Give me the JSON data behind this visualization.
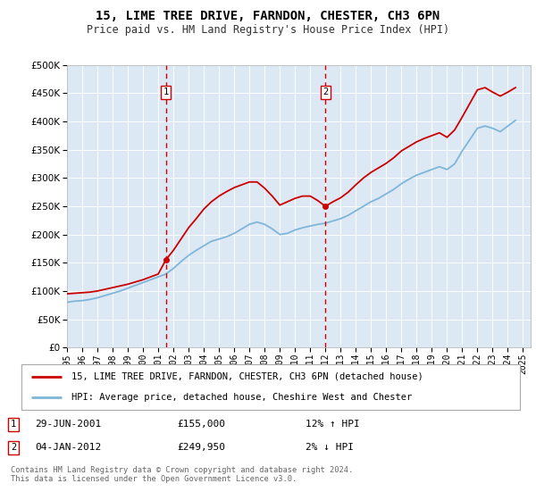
{
  "title": "15, LIME TREE DRIVE, FARNDON, CHESTER, CH3 6PN",
  "subtitle": "Price paid vs. HM Land Registry's House Price Index (HPI)",
  "legend_line1": "15, LIME TREE DRIVE, FARNDON, CHESTER, CH3 6PN (detached house)",
  "legend_line2": "HPI: Average price, detached house, Cheshire West and Chester",
  "sale1_date": "29-JUN-2001",
  "sale1_price": "£155,000",
  "sale1_hpi": "12% ↑ HPI",
  "sale2_date": "04-JAN-2012",
  "sale2_price": "£249,950",
  "sale2_hpi": "2% ↓ HPI",
  "footer": "Contains HM Land Registry data © Crown copyright and database right 2024.\nThis data is licensed under the Open Government Licence v3.0.",
  "sale1_year": 2001.5,
  "sale2_year": 2012.0,
  "sale1_value": 155000,
  "sale2_value": 249950,
  "plot_bg": "#dce9f5",
  "red_line_color": "#cc0000",
  "blue_line_color": "#7fb5d8",
  "vline_color": "#cc0000",
  "ylim": [
    0,
    500000
  ],
  "xlim_start": 1995,
  "xlim_end": 2025.5,
  "years_hpi": [
    1995,
    1995.5,
    1996,
    1996.5,
    1997,
    1997.5,
    1998,
    1998.5,
    1999,
    1999.5,
    2000,
    2000.5,
    2001,
    2001.5,
    2002,
    2002.5,
    2003,
    2003.5,
    2004,
    2004.5,
    2005,
    2005.5,
    2006,
    2006.5,
    2007,
    2007.5,
    2008,
    2008.5,
    2009,
    2009.5,
    2010,
    2010.5,
    2011,
    2011.5,
    2012,
    2012.5,
    2013,
    2013.5,
    2014,
    2014.5,
    2015,
    2015.5,
    2016,
    2016.5,
    2017,
    2017.5,
    2018,
    2018.5,
    2019,
    2019.5,
    2020,
    2020.5,
    2021,
    2021.5,
    2022,
    2022.5,
    2023,
    2023.5,
    2024,
    2024.5
  ],
  "hpi_values": [
    80000,
    82000,
    83000,
    85000,
    88000,
    92000,
    96000,
    100000,
    105000,
    110000,
    115000,
    120000,
    125000,
    130000,
    140000,
    152000,
    163000,
    172000,
    180000,
    188000,
    192000,
    196000,
    202000,
    210000,
    218000,
    222000,
    218000,
    210000,
    200000,
    202000,
    208000,
    212000,
    215000,
    218000,
    220000,
    224000,
    228000,
    234000,
    242000,
    250000,
    258000,
    264000,
    272000,
    280000,
    290000,
    298000,
    305000,
    310000,
    315000,
    320000,
    315000,
    325000,
    348000,
    368000,
    388000,
    392000,
    388000,
    382000,
    392000,
    402000
  ],
  "years_red": [
    1995,
    1995.5,
    1996,
    1996.5,
    1997,
    1997.5,
    1998,
    1998.5,
    1999,
    1999.5,
    2000,
    2000.5,
    2001,
    2001.5,
    2002,
    2002.5,
    2003,
    2003.5,
    2004,
    2004.5,
    2005,
    2005.5,
    2006,
    2006.5,
    2007,
    2007.5,
    2008,
    2008.5,
    2009,
    2009.5,
    2010,
    2010.5,
    2011,
    2011.5,
    2012,
    2012.5,
    2013,
    2013.5,
    2014,
    2014.5,
    2015,
    2015.5,
    2016,
    2016.5,
    2017,
    2017.5,
    2018,
    2018.5,
    2019,
    2019.5,
    2020,
    2020.5,
    2021,
    2021.5,
    2022,
    2022.5,
    2023,
    2023.5,
    2024,
    2024.5
  ],
  "red_values": [
    95000,
    96000,
    97000,
    98000,
    100000,
    103000,
    106000,
    109000,
    112000,
    116000,
    120000,
    125000,
    130000,
    155000,
    172000,
    192000,
    212000,
    228000,
    245000,
    258000,
    268000,
    276000,
    283000,
    288000,
    293000,
    293000,
    282000,
    268000,
    252000,
    258000,
    264000,
    268000,
    268000,
    260000,
    249950,
    258000,
    265000,
    275000,
    288000,
    300000,
    310000,
    318000,
    326000,
    336000,
    348000,
    356000,
    364000,
    370000,
    375000,
    380000,
    372000,
    385000,
    408000,
    432000,
    456000,
    460000,
    452000,
    445000,
    452000,
    460000
  ]
}
